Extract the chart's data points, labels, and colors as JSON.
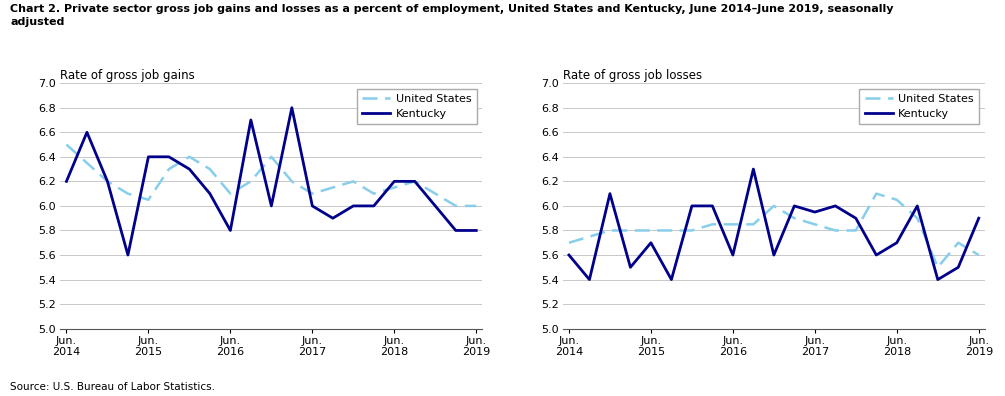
{
  "title_line1": "Chart 2. Private sector gross job gains and losses as a percent of employment, United States and Kentucky, June 2014–June 2019, seasonally",
  "title_line2": "adjusted",
  "source": "Source: U.S. Bureau of Labor Statistics.",
  "gains": {
    "ylabel": "Rate of gross job gains",
    "us_y": [
      6.5,
      6.35,
      6.2,
      6.1,
      6.05,
      6.3,
      6.4,
      6.3,
      6.1,
      6.2,
      6.4,
      6.2,
      6.1,
      6.15,
      6.2,
      6.1,
      6.15,
      6.2,
      6.1,
      6.0,
      6.0
    ],
    "ky_y": [
      6.2,
      6.6,
      6.2,
      5.6,
      6.4,
      6.4,
      6.3,
      6.1,
      5.8,
      6.7,
      6.0,
      6.8,
      6.0,
      5.9,
      6.0,
      6.0,
      6.2,
      6.2,
      6.0,
      5.8,
      5.8
    ]
  },
  "losses": {
    "ylabel": "Rate of gross job losses",
    "us_y": [
      5.7,
      5.75,
      5.8,
      5.8,
      5.8,
      5.8,
      5.8,
      5.85,
      5.85,
      5.85,
      6.0,
      5.9,
      5.85,
      5.8,
      5.8,
      6.1,
      6.05,
      5.9,
      5.5,
      5.7,
      5.6
    ],
    "ky_y": [
      5.6,
      5.4,
      6.1,
      5.5,
      5.7,
      5.4,
      6.0,
      6.0,
      5.6,
      6.3,
      5.6,
      6.0,
      5.95,
      6.0,
      5.9,
      5.6,
      5.7,
      6.0,
      5.4,
      5.5,
      5.9
    ]
  },
  "x_tick_pos": [
    0,
    4,
    8,
    12,
    16,
    20
  ],
  "x_tick_labels": [
    "Jun.\n2014",
    "Jun.\n2015",
    "Jun.\n2016",
    "Jun.\n2017",
    "Jun.\n2018",
    "Jun.\n2019"
  ],
  "ylim": [
    5.0,
    7.0
  ],
  "yticks": [
    5.0,
    5.2,
    5.4,
    5.6,
    5.8,
    6.0,
    6.2,
    6.4,
    6.6,
    6.8,
    7.0
  ],
  "us_color": "#87CEEB",
  "ky_color": "#00008B",
  "background_color": "#ffffff",
  "grid_color": "#c8c8c8"
}
